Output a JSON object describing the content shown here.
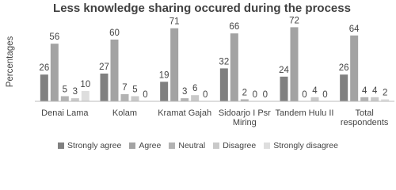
{
  "chart_data": {
    "type": "bar",
    "title": "Less knowledge sharing occured during the process",
    "y_label": "Percentages",
    "categories": [
      "Denai Lama",
      "Kolam",
      "Kramat Gajah",
      "Sidoarjo I Psr Miring",
      "Tandem Hulu II",
      "Total respondents"
    ],
    "series": [
      {
        "name": "Strongly agree",
        "color": "#808080",
        "values": [
          26,
          27,
          19,
          32,
          24,
          26
        ]
      },
      {
        "name": "Agree",
        "color": "#a3a3a3",
        "values": [
          56,
          60,
          71,
          66,
          72,
          64
        ]
      },
      {
        "name": "Neutral",
        "color": "#b3b3b3",
        "values": [
          5,
          7,
          3,
          2,
          0,
          4
        ]
      },
      {
        "name": "Disagree",
        "color": "#c9c9c9",
        "values": [
          3,
          5,
          6,
          0,
          4,
          4
        ]
      },
      {
        "name": "Strongly disagree",
        "color": "#dedede",
        "values": [
          10,
          0,
          0,
          0,
          0,
          2
        ]
      }
    ],
    "ylim": [
      0,
      80
    ],
    "legend": "bottom"
  }
}
